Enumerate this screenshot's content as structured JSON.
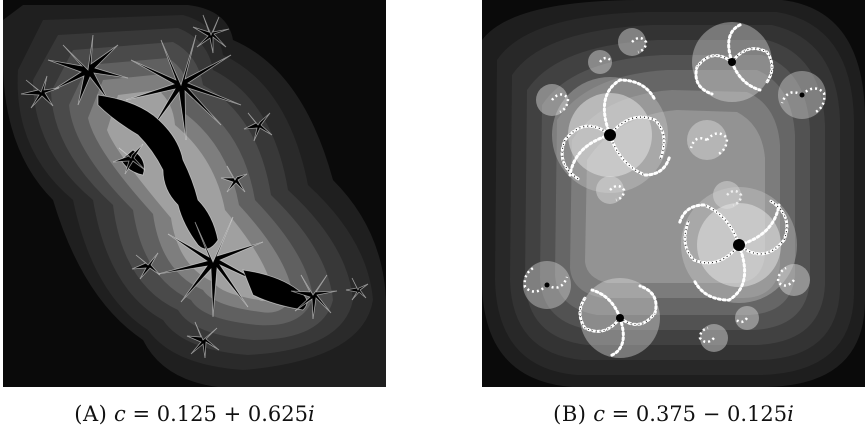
{
  "figures": [
    {
      "tag": "(A)",
      "label_prefix": "c = ",
      "real": "0.125",
      "operator": " + ",
      "imag": "0.625",
      "unit": "i",
      "background": "#2a2a2a",
      "edge_color": "#0a0a0a"
    },
    {
      "tag": "(B)",
      "label_prefix": "c = ",
      "real": "0.375",
      "operator": " − ",
      "imag": "0.125",
      "unit": "i",
      "background": "#2a2a2a",
      "edge_color": "#0a0a0a"
    }
  ]
}
